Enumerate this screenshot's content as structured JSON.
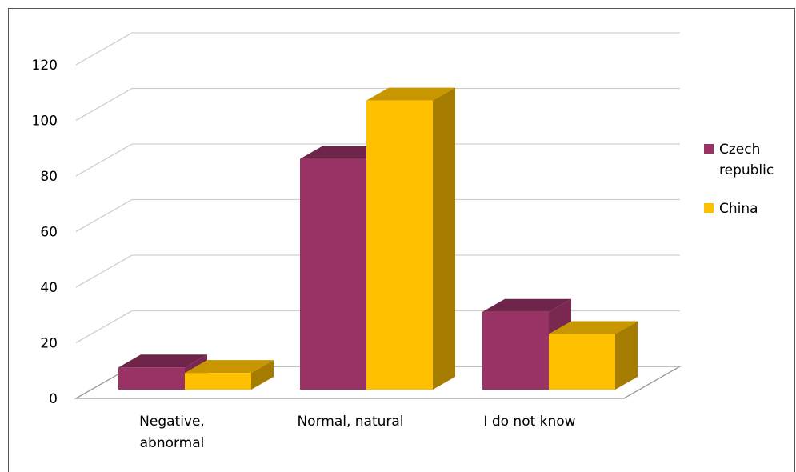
{
  "chart_data": {
    "type": "bar",
    "style": "3d-clustered-column",
    "categories": [
      [
        "Negative,",
        "abnormal"
      ],
      [
        "Normal, natural"
      ],
      [
        "I do not know"
      ]
    ],
    "series": [
      {
        "name": [
          "Czech",
          "republic"
        ],
        "values": [
          8,
          83,
          28
        ],
        "color": "#993366",
        "top": "#6f2549",
        "side": "#7a2850"
      },
      {
        "name": [
          "China"
        ],
        "values": [
          6,
          104,
          20
        ],
        "color": "#ffc000",
        "top": "#c79600",
        "side": "#a67c00"
      }
    ],
    "yticks": [
      0,
      20,
      40,
      60,
      80,
      100,
      120
    ],
    "ylim": [
      0,
      120
    ],
    "grid": true,
    "legend": "right",
    "title": "",
    "xlabel": "",
    "ylabel": ""
  }
}
